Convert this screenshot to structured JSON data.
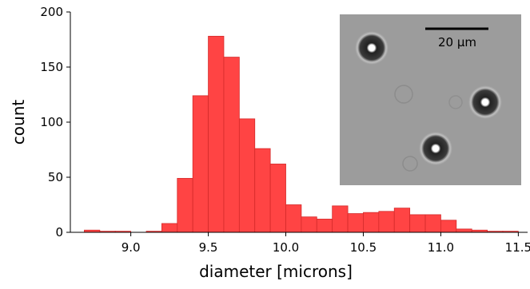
{
  "chart_data": {
    "type": "histogram",
    "xlabel": "diameter [microns]",
    "ylabel": "count",
    "annotation": "20 µm",
    "color": "#ff4444",
    "edgecolor": "#d42a2a",
    "bins": [
      8.7,
      8.8,
      8.9,
      9.0,
      9.1,
      9.2,
      9.3,
      9.4,
      9.5,
      9.6,
      9.7,
      9.8,
      9.9,
      10.0,
      10.1,
      10.2,
      10.3,
      10.4,
      10.5,
      10.6,
      10.7,
      10.8,
      10.9,
      11.0,
      11.1,
      11.2,
      11.3,
      11.4,
      11.5
    ],
    "values": [
      2,
      1,
      1,
      0,
      1,
      8,
      49,
      124,
      178,
      159,
      103,
      76,
      62,
      25,
      14,
      12,
      24,
      17,
      18,
      19,
      22,
      16,
      16,
      11,
      3,
      2,
      1,
      1
    ],
    "xlim": [
      8.61,
      11.56
    ],
    "ylim": [
      0,
      200
    ],
    "xticks": [
      {
        "value": 9.0,
        "label": "9.0"
      },
      9.5,
      {
        "value": 10.0,
        "label": "10.0"
      },
      10.5,
      {
        "value": 11.0,
        "label": "11.0"
      },
      11.5
    ],
    "yticks": [
      0,
      50,
      100,
      150,
      200
    ]
  }
}
